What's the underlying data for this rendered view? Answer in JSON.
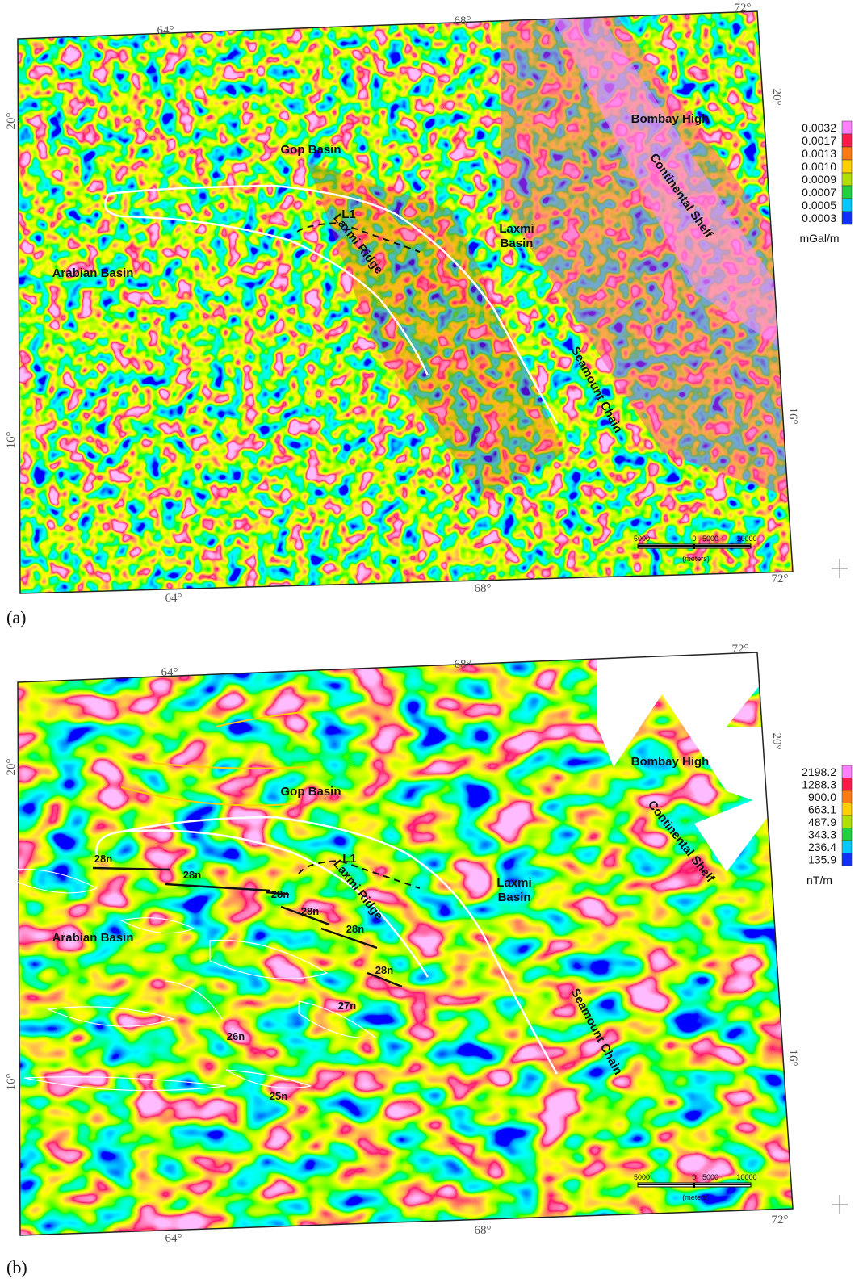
{
  "panels": [
    {
      "label": "(a)",
      "axis_labels": {
        "top": [
          "64°",
          "68°",
          "72°"
        ],
        "bottom": [
          "64°",
          "68°",
          "72°"
        ],
        "left": [
          "20°",
          "16°"
        ],
        "right": [
          "20°",
          "16°"
        ]
      },
      "places": [
        "Gop Basin",
        "Bombay High",
        "Continental Shelf",
        "Laxmi Basin",
        "Arabian Basin",
        "L1",
        "Laxmi Ridge",
        "Seamount Chain"
      ],
      "anomalies": [],
      "legend": {
        "values": [
          "0.0032",
          "0.0017",
          "0.0013",
          "0.0010",
          "0.0009",
          "0.0007",
          "0.0005",
          "0.0003"
        ],
        "colors": [
          "#ff80ff",
          "#ff1a4a",
          "#ff7a10",
          "#ffd000",
          "#b0e000",
          "#20d040",
          "#00c8ff",
          "#1030ff"
        ],
        "unit": "mGal/m"
      },
      "scale_bar": [
        "5000",
        "0",
        "5000",
        "10000",
        "(meters)"
      ]
    },
    {
      "label": "(b)",
      "axis_labels": {
        "top": [
          "64°",
          "68°",
          "72°"
        ],
        "bottom": [
          "64°",
          "68°",
          "72°"
        ],
        "left": [
          "20°",
          "16°"
        ],
        "right": [
          "20°",
          "16°"
        ]
      },
      "places": [
        "Gop Basin",
        "Bombay High",
        "Continental Shelf",
        "Laxmi Basin",
        "Arabian Basin",
        "L1",
        "Laxmi Ridge",
        "Seamount Chain"
      ],
      "anomalies": [
        "28n",
        "28n",
        "28n",
        "28n",
        "28n",
        "28n",
        "27n",
        "26n",
        "25n"
      ],
      "legend": {
        "values": [
          "2198.2",
          "1288.3",
          "900.0",
          "663.1",
          "487.9",
          "343.3",
          "236.4",
          "135.9"
        ],
        "colors": [
          "#ff80ff",
          "#ff1a4a",
          "#ff7a10",
          "#ffd000",
          "#b0e000",
          "#20d040",
          "#00c8ff",
          "#1030ff"
        ],
        "unit": "nT/m"
      },
      "scale_bar": [
        "5000",
        "0",
        "5000",
        "10000",
        "(meters)"
      ]
    }
  ]
}
